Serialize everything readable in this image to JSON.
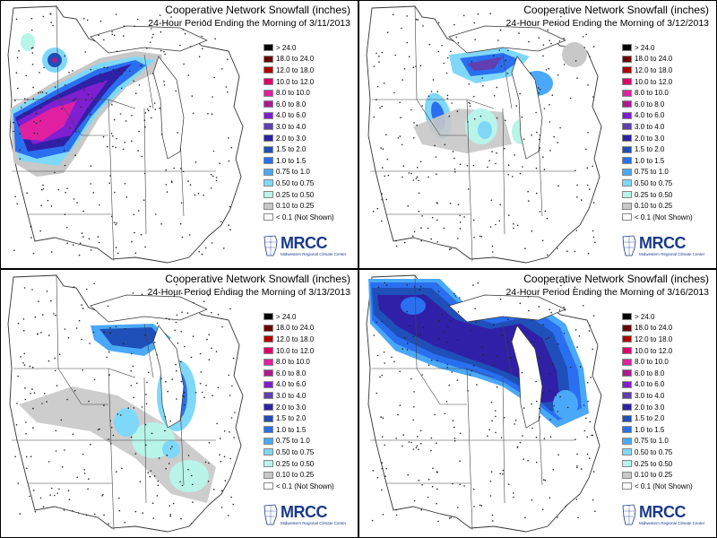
{
  "panels": [
    {
      "title": "Cooperative Network Snowfall (inches)",
      "subtitle": "24-Hour Period Ending the Morning of 3/11/2013"
    },
    {
      "title": "Cooperative Network Snowfall (inches)",
      "subtitle": "24-Hour Period Ending the Morning of 3/12/2013"
    },
    {
      "title": "Cooperative Network Snowfall (inches)",
      "subtitle": "24-Hour Period Ending the Morning of 3/13/2013"
    },
    {
      "title": "Cooperative Network Snowfall (inches)",
      "subtitle": "24-Hour Period Ending the Morning of 3/16/2013"
    }
  ],
  "legend": [
    {
      "label": "> 24.0",
      "color": "#000000"
    },
    {
      "label": "18.0 to 24.0",
      "color": "#6b0000"
    },
    {
      "label": "12.0 to 18.0",
      "color": "#b00000"
    },
    {
      "label": "10.0 to 12.0",
      "color": "#e0006a"
    },
    {
      "label": "8.0 to 10.0",
      "color": "#e020a0"
    },
    {
      "label": "6.0 to 8.0",
      "color": "#b01890"
    },
    {
      "label": "4.0 to 6.0",
      "color": "#7f1fd0"
    },
    {
      "label": "3.0 to 4.0",
      "color": "#6040b0"
    },
    {
      "label": "2.0 to 3.0",
      "color": "#3020a8"
    },
    {
      "label": "1.5 to 2.0",
      "color": "#1f4fb8"
    },
    {
      "label": "1.0 to 1.5",
      "color": "#2a6ff0"
    },
    {
      "label": "0.75 to 1.0",
      "color": "#4aa8f8"
    },
    {
      "label": "0.50 to 0.75",
      "color": "#80d8f8"
    },
    {
      "label": "0.25 to 0.50",
      "color": "#b8f4e8"
    },
    {
      "label": "0.10 to 0.25",
      "color": "#c8c8c8"
    },
    {
      "label": "< 0.1 (Not Shown)",
      "color": "#ffffff"
    }
  ],
  "logo": {
    "name": "MRCC",
    "full_name": "Midwestern Regional Climate Center",
    "color": "#1a3a8a"
  }
}
